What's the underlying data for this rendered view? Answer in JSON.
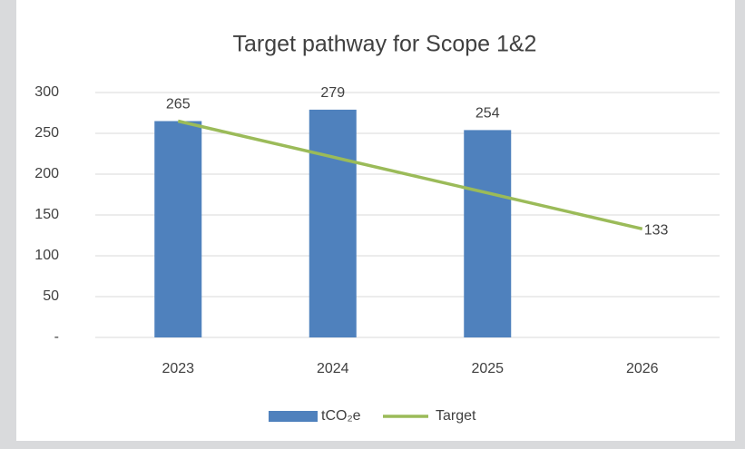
{
  "chart_data": {
    "type": "bar-line",
    "title": "Target pathway for Scope 1&2",
    "categories": [
      "2023",
      "2024",
      "2025",
      "2026"
    ],
    "series": [
      {
        "name": "tCO₂e",
        "type": "bar",
        "color": "#4f81bd",
        "values": [
          265,
          279,
          254,
          null
        ]
      },
      {
        "name": "Target",
        "type": "line",
        "color": "#9bbb59",
        "values": [
          265,
          221,
          177,
          133
        ]
      }
    ],
    "ylim": [
      0,
      300
    ],
    "yticks": [
      {
        "value": 0,
        "label": "-"
      },
      50,
      100,
      150,
      200,
      250,
      300
    ],
    "grid": true,
    "legend": "bottom"
  }
}
